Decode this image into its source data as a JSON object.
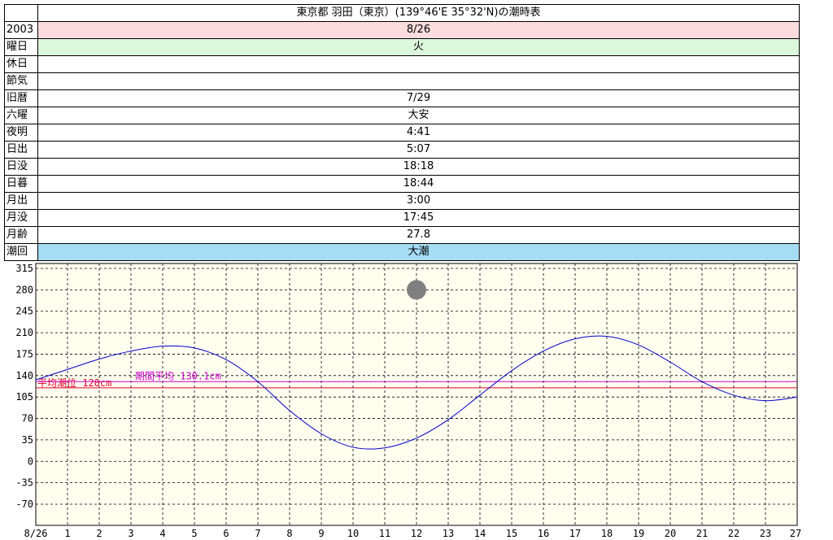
{
  "title": "東京都 羽田（東京）(139°46'E 35°32'N)の潮時表",
  "table": {
    "rows": [
      {
        "label": "2003",
        "value": "8/26",
        "color": "#fcdcdc"
      },
      {
        "label": "曜日",
        "value": "火",
        "color": "#dcf8dc"
      },
      {
        "label": "休日",
        "value": "",
        "color": "#ffffff"
      },
      {
        "label": "節気",
        "value": "",
        "color": "#ffffff"
      },
      {
        "label": "旧暦",
        "value": "7/29",
        "color": "#ffffff"
      },
      {
        "label": "六曜",
        "value": "大安",
        "color": "#ffffff"
      },
      {
        "label": "夜明",
        "value": "4:41",
        "color": "#ffffff"
      },
      {
        "label": "日出",
        "value": "5:07",
        "color": "#ffffff"
      },
      {
        "label": "日没",
        "value": "18:18",
        "color": "#ffffff"
      },
      {
        "label": "日暮",
        "value": "18:44",
        "color": "#ffffff"
      },
      {
        "label": "月出",
        "value": "3:00",
        "color": "#ffffff"
      },
      {
        "label": "月没",
        "value": "17:45",
        "color": "#ffffff"
      },
      {
        "label": "月齢",
        "value": "27.8",
        "color": "#ffffff"
      },
      {
        "label": "潮回",
        "value": "大潮",
        "color": "#a6dcf4"
      }
    ]
  },
  "chart_data": {
    "type": "line",
    "y_ticks": [
      315,
      280,
      245,
      210,
      175,
      140,
      105,
      70,
      35,
      0,
      -35,
      -70
    ],
    "ylim": [
      -70,
      315
    ],
    "x_ticks": [
      "8/26",
      "1",
      "2",
      "3",
      "4",
      "5",
      "6",
      "7",
      "8",
      "9",
      "10",
      "11",
      "12",
      "13",
      "14",
      "15",
      "16",
      "17",
      "18",
      "19",
      "20",
      "21",
      "22",
      "23",
      "27"
    ],
    "xlim": [
      0,
      24
    ],
    "grid": true,
    "background": "#fffff0",
    "series": [
      {
        "color": "#0000cc",
        "x": [
          0,
          1,
          2,
          3,
          4,
          5,
          6,
          7,
          8,
          9,
          10,
          11,
          12,
          13,
          14,
          15,
          16,
          17,
          18,
          19,
          20,
          21,
          22,
          23,
          24
        ],
        "values": [
          133,
          150,
          167,
          180,
          188,
          185,
          166,
          130,
          83,
          45,
          23,
          22,
          38,
          68,
          108,
          148,
          180,
          200,
          204,
          190,
          162,
          130,
          108,
          99,
          105
        ]
      }
    ],
    "reference_lines": [
      {
        "value": 120,
        "label": "平均潮位 120cm",
        "color": "#e0002a"
      },
      {
        "value": 130.1,
        "label": "期間平均 130.1cm",
        "color": "#cc00cc"
      }
    ],
    "moon_marker": {
      "x": 12,
      "y": 280,
      "color": "#808080"
    }
  }
}
